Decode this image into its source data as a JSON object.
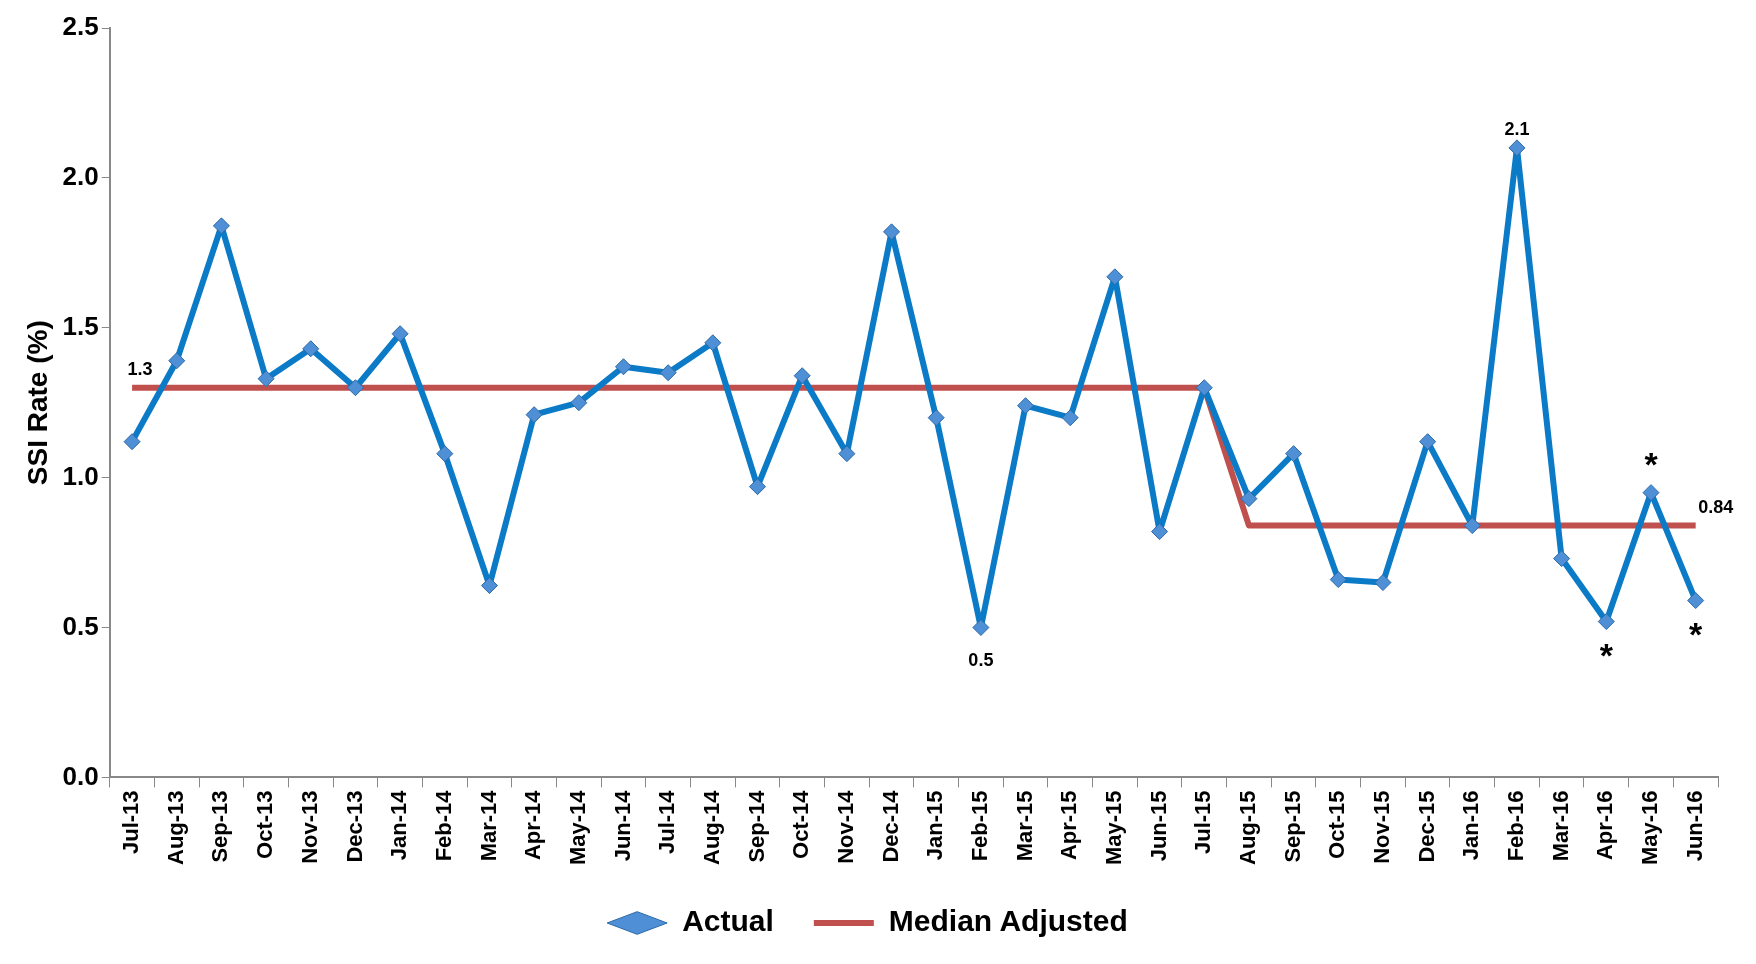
{
  "chart_data": {
    "type": "line",
    "ylabel": "SSI Rate (%)",
    "categories": [
      "Jul-13",
      "Aug-13",
      "Sep-13",
      "Oct-13",
      "Nov-13",
      "Dec-13",
      "Jan-14",
      "Feb-14",
      "Mar-14",
      "Apr-14",
      "May-14",
      "Jun-14",
      "Jul-14",
      "Aug-14",
      "Sep-14",
      "Oct-14",
      "Nov-14",
      "Dec-14",
      "Jan-15",
      "Feb-15",
      "Mar-15",
      "Apr-15",
      "May-15",
      "Jun-15",
      "Jul-15",
      "Aug-15",
      "Sep-15",
      "Oct-15",
      "Nov-15",
      "Dec-15",
      "Jan-16",
      "Feb-16",
      "Mar-16",
      "Apr-16",
      "May-16",
      "Jun-16"
    ],
    "series": [
      {
        "name": "Actual",
        "color": "#0b7bc7",
        "marker": "diamond",
        "values": [
          1.12,
          1.39,
          1.84,
          1.33,
          1.43,
          1.3,
          1.48,
          1.08,
          0.64,
          1.21,
          1.25,
          1.37,
          1.35,
          1.45,
          0.97,
          1.34,
          1.08,
          1.82,
          1.2,
          0.5,
          1.24,
          1.2,
          1.67,
          0.82,
          1.3,
          0.93,
          1.08,
          0.66,
          0.65,
          1.12,
          0.84,
          2.1,
          0.73,
          0.52,
          0.95,
          0.59
        ],
        "value_labels": [
          null,
          null,
          null,
          null,
          null,
          null,
          null,
          null,
          null,
          null,
          null,
          null,
          null,
          null,
          null,
          null,
          null,
          null,
          null,
          "0.5",
          null,
          null,
          null,
          null,
          null,
          null,
          null,
          null,
          null,
          null,
          null,
          "2.1",
          null,
          null,
          null,
          null
        ]
      },
      {
        "name": "Median Adjusted",
        "color": "#c0504d",
        "marker": "none",
        "values": [
          1.3,
          1.3,
          1.3,
          1.3,
          1.3,
          1.3,
          1.3,
          1.3,
          1.3,
          1.3,
          1.3,
          1.3,
          1.3,
          1.3,
          1.3,
          1.3,
          1.3,
          1.3,
          1.3,
          1.3,
          1.3,
          1.3,
          1.3,
          1.3,
          1.3,
          0.84,
          0.84,
          0.84,
          0.84,
          0.84,
          0.84,
          0.84,
          0.84,
          0.84,
          0.84,
          0.84
        ],
        "value_labels": [
          "1.3",
          null,
          null,
          null,
          null,
          null,
          null,
          null,
          null,
          null,
          null,
          null,
          null,
          null,
          null,
          null,
          null,
          null,
          null,
          null,
          null,
          null,
          null,
          null,
          null,
          null,
          null,
          null,
          null,
          null,
          null,
          null,
          null,
          null,
          null,
          "0.84"
        ]
      }
    ],
    "ylim": [
      0,
      2.5
    ],
    "yticks": [
      {
        "value": 0,
        "label": "0.0"
      },
      {
        "value": 0.5,
        "label": "0.5"
      },
      {
        "value": 1,
        "label": "1.0"
      },
      {
        "value": 1.5,
        "label": "1.5"
      },
      {
        "value": 2,
        "label": "2.0"
      },
      {
        "value": 2.5,
        "label": "2.5"
      }
    ],
    "annotations": [
      {
        "text": "*",
        "x": "May-16",
        "y": 0.95
      },
      {
        "text": "*",
        "x": "Apr-16",
        "y": 0.52
      },
      {
        "text": "*",
        "x": "Jun-16",
        "y": 0.59
      }
    ],
    "grid": false,
    "legend": "bottom",
    "line_style": "solid"
  }
}
